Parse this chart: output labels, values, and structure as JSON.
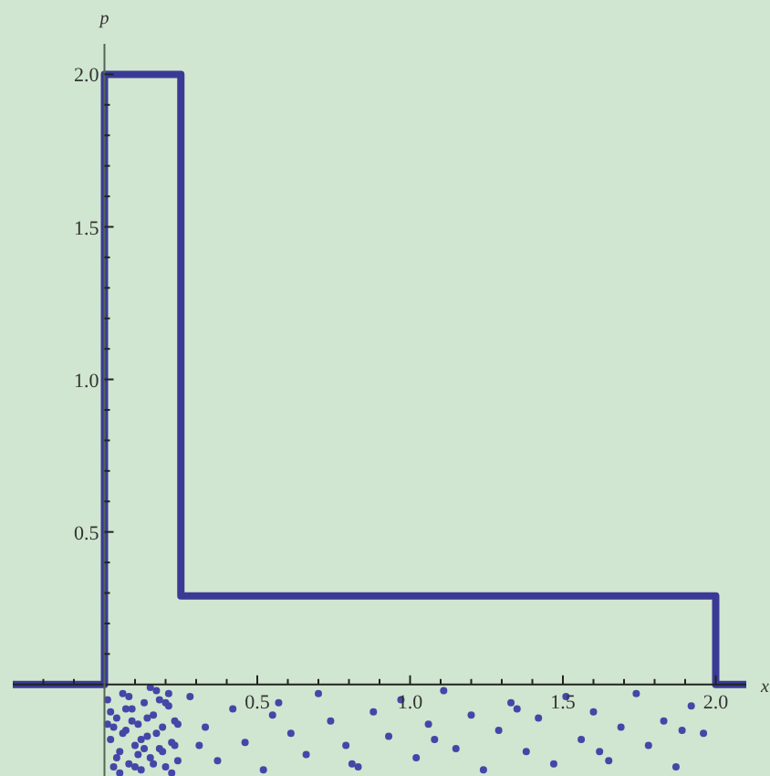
{
  "chart_data": {
    "type": "step",
    "xlabel": "x",
    "ylabel": "p",
    "xlim": [
      -0.3,
      2.1
    ],
    "ylim": [
      -0.3,
      2.1
    ],
    "xticks": [
      {
        "value": -0.2,
        "label": null
      },
      {
        "value": -0.1,
        "label": null
      },
      {
        "value": 0.1,
        "label": null
      },
      {
        "value": 0.2,
        "label": null
      },
      {
        "value": 0.3,
        "label": null
      },
      {
        "value": 0.4,
        "label": null
      },
      0.5,
      {
        "value": 0.6,
        "label": null
      },
      {
        "value": 0.7,
        "label": null
      },
      {
        "value": 0.8,
        "label": null
      },
      {
        "value": 0.9,
        "label": null
      },
      {
        "value": 1,
        "label": "1.0"
      },
      {
        "value": 1.1,
        "label": null
      },
      {
        "value": 1.2,
        "label": null
      },
      {
        "value": 1.3,
        "label": null
      },
      {
        "value": 1.4,
        "label": null
      },
      1.5,
      {
        "value": 1.6,
        "label": null
      },
      {
        "value": 1.7,
        "label": null
      },
      {
        "value": 1.8,
        "label": null
      },
      {
        "value": 1.9,
        "label": null
      },
      {
        "value": 2,
        "label": "2.0"
      }
    ],
    "yticks": [
      {
        "value": 0.1,
        "label": null
      },
      {
        "value": 0.2,
        "label": null
      },
      {
        "value": 0.3,
        "label": null
      },
      {
        "value": 0.4,
        "label": null
      },
      0.5,
      {
        "value": 0.6,
        "label": null
      },
      {
        "value": 0.7,
        "label": null
      },
      {
        "value": 0.8,
        "label": null
      },
      {
        "value": 0.9,
        "label": null
      },
      {
        "value": 1,
        "label": "1.0"
      },
      {
        "value": 1.1,
        "label": null
      },
      {
        "value": 1.2,
        "label": null
      },
      {
        "value": 1.3,
        "label": null
      },
      {
        "value": 1.4,
        "label": null
      },
      1.5,
      {
        "value": 1.6,
        "label": null
      },
      {
        "value": 1.7,
        "label": null
      },
      {
        "value": 1.8,
        "label": null
      },
      {
        "value": 1.9,
        "label": null
      },
      {
        "value": 2,
        "label": "2.0"
      }
    ],
    "grid": false,
    "series": [
      {
        "color": "#3a3a96",
        "line_style": "solid",
        "marker": "none",
        "x": [
          -0.3,
          0,
          0.25,
          2.0,
          2.1
        ],
        "values": [
          0,
          2,
          0.29,
          0,
          0
        ]
      },
      {
        "type": "scatter",
        "color": "#4646a8",
        "marker": "circle",
        "x": [
          0.01,
          0.02,
          0.03,
          0.04,
          0.05,
          0.06,
          0.07,
          0.08,
          0.09,
          0.1,
          0.11,
          0.12,
          0.13,
          0.14,
          0.15,
          0.16,
          0.17,
          0.18,
          0.19,
          0.2,
          0.21,
          0.22,
          0.23,
          0.24,
          0.02,
          0.05,
          0.08,
          0.11,
          0.14,
          0.17,
          0.2,
          0.23,
          0.03,
          0.07,
          0.12,
          0.16,
          0.21,
          0.24,
          0.04,
          0.09,
          0.13,
          0.18,
          0.22,
          0.06,
          0.15,
          0.01,
          0.1,
          0.19,
          0.28,
          0.33,
          0.37,
          0.42,
          0.46,
          0.52,
          0.57,
          0.61,
          0.66,
          0.7,
          0.74,
          0.79,
          0.83,
          0.88,
          0.93,
          0.97,
          1.02,
          1.06,
          1.11,
          1.15,
          1.2,
          1.24,
          1.29,
          1.33,
          1.38,
          1.42,
          1.47,
          1.51,
          1.56,
          1.6,
          1.65,
          1.69,
          1.74,
          1.78,
          1.83,
          1.87,
          1.92,
          1.96,
          0.31,
          0.55,
          0.81,
          1.08,
          1.35,
          1.62,
          1.89
        ],
        "values": [
          -0.05,
          -0.18,
          -0.27,
          -0.11,
          -0.22,
          -0.03,
          -0.15,
          -0.26,
          -0.08,
          -0.2,
          -0.13,
          -0.28,
          -0.06,
          -0.17,
          -0.24,
          -0.1,
          -0.02,
          -0.21,
          -0.14,
          -0.27,
          -0.07,
          -0.19,
          -0.12,
          -0.25,
          -0.09,
          -0.29,
          -0.04,
          -0.23,
          -0.11,
          -0.16,
          -0.06,
          -0.2,
          -0.14,
          -0.08,
          -0.18,
          -0.26,
          -0.03,
          -0.13,
          -0.24,
          -0.12,
          -0.21,
          -0.05,
          -0.29,
          -0.16,
          -0.01,
          -0.13,
          -0.27,
          -0.22,
          -0.04,
          -0.14,
          -0.25,
          -0.08,
          -0.19,
          -0.28,
          -0.06,
          -0.16,
          -0.23,
          -0.03,
          -0.12,
          -0.2,
          -0.27,
          -0.09,
          -0.17,
          -0.05,
          -0.24,
          -0.13,
          -0.02,
          -0.21,
          -0.1,
          -0.28,
          -0.15,
          -0.06,
          -0.22,
          -0.11,
          -0.26,
          -0.04,
          -0.18,
          -0.09,
          -0.25,
          -0.14,
          -0.03,
          -0.2,
          -0.12,
          -0.27,
          -0.07,
          -0.16,
          -0.2,
          -0.1,
          -0.26,
          -0.18,
          -0.08,
          -0.22,
          -0.15
        ]
      }
    ]
  }
}
